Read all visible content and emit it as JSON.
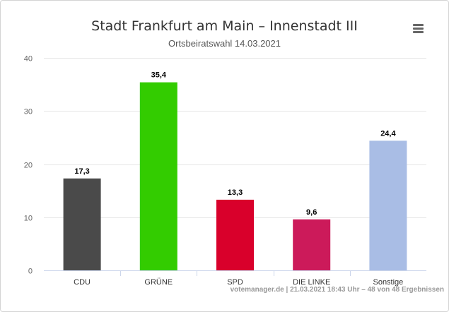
{
  "chart_data": {
    "type": "bar",
    "title": "Stadt Frankfurt am Main - Innenstadt III",
    "subtitle": "Ortsbeiratswahl 14.03.2021",
    "categories": [
      "CDU",
      "GRÜNE",
      "SPD",
      "DIE LINKE",
      "Sonstige"
    ],
    "values": [
      17.3,
      35.4,
      13.3,
      9.6,
      24.4
    ],
    "value_labels": [
      "17,3",
      "35,4",
      "13,3",
      "9,6",
      "24,4"
    ],
    "colors": [
      "#4a4a4a",
      "#33cc00",
      "#d9002b",
      "#cc1a5a",
      "#a9bde5"
    ],
    "ylim": [
      0,
      40
    ],
    "yticks": [
      "0",
      "10",
      "20",
      "30",
      "40"
    ],
    "ytick_values": [
      0,
      10,
      20,
      30,
      40
    ],
    "grid": true,
    "legend": "none"
  },
  "header": {
    "title": "Stadt Frankfurt am Main – Innenstadt III",
    "subtitle": "Ortsbeiratswahl 14.03.2021"
  },
  "menu": {
    "icon": "hamburger-menu-icon"
  },
  "credits": "votemanager.de | 21.03.2021 18:43 Uhr – 48 von 48 Ergebnissen"
}
